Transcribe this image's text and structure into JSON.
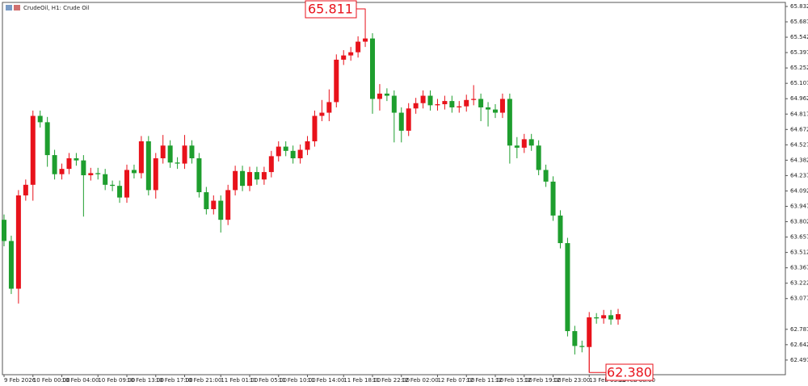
{
  "chart_data": {
    "type": "candlestick",
    "title": "CrudeOil, H1: Crude Oil",
    "categories": [
      "9 Feb 2026",
      null,
      null,
      null,
      "10 Feb 00:00",
      null,
      null,
      null,
      "10 Feb 04:00",
      null,
      null,
      null,
      null,
      "10 Feb 09:00",
      null,
      null,
      null,
      "10 Feb 13:00",
      null,
      null,
      null,
      "10 Feb 17:00",
      null,
      null,
      null,
      "10 Feb 21:00",
      null,
      null,
      null,
      null,
      "11 Feb 01:00",
      null,
      null,
      null,
      "11 Feb 05:00",
      null,
      null,
      null,
      "11 Feb 10:00",
      null,
      null,
      null,
      "11 Feb 14:00",
      null,
      null,
      null,
      null,
      "11 Feb 18:00",
      null,
      null,
      null,
      "11 Feb 22:00",
      null,
      null,
      null,
      "12 Feb 02:00",
      null,
      null,
      null,
      null,
      "12 Feb 07:00",
      null,
      null,
      null,
      "12 Feb 11:00",
      null,
      null,
      null,
      "12 Feb 15:00",
      null,
      null,
      null,
      "12 Feb 19:00",
      null,
      null,
      null,
      "12 Feb 23:00",
      null,
      null,
      null,
      null,
      "13 Feb 03:00",
      null,
      null,
      null,
      "13 Feb 08:00"
    ],
    "open": [
      63.82,
      63.62,
      63.17,
      64.05,
      64.15,
      64.8,
      64.74,
      64.43,
      64.25,
      64.3,
      64.4,
      64.38,
      64.24,
      64.26,
      64.25,
      64.15,
      64.14,
      64.03,
      64.29,
      64.26,
      64.56,
      64.1,
      64.4,
      64.52,
      64.36,
      64.35,
      64.52,
      64.4,
      64.08,
      63.92,
      64.0,
      63.82,
      64.1,
      64.28,
      64.14,
      64.27,
      64.2,
      64.27,
      64.42,
      64.51,
      64.47,
      64.4,
      64.48,
      64.56,
      64.8,
      64.83,
      64.93,
      65.33,
      65.37,
      65.4,
      65.5,
      65.53,
      64.96,
      65.01,
      64.99,
      64.83,
      64.66,
      64.87,
      64.92,
      64.99,
      64.9,
      64.91,
      64.94,
      64.88,
      64.89,
      64.95,
      64.96,
      64.88,
      64.86,
      64.83,
      64.96,
      64.52,
      64.5,
      64.58,
      64.52,
      64.29,
      64.18,
      63.86,
      63.6,
      62.77,
      62.63,
      62.62,
      62.9,
      62.89,
      62.92,
      62.88
    ],
    "high": [
      63.87,
      63.67,
      64.1,
      64.2,
      64.85,
      64.85,
      64.79,
      64.48,
      64.35,
      64.45,
      64.45,
      64.43,
      64.31,
      64.31,
      64.3,
      64.19,
      64.19,
      64.34,
      64.34,
      64.61,
      64.61,
      64.45,
      64.62,
      64.57,
      64.41,
      64.62,
      64.57,
      64.45,
      64.13,
      64.05,
      64.05,
      64.15,
      64.33,
      64.33,
      64.32,
      64.32,
      64.32,
      64.47,
      64.56,
      64.56,
      64.52,
      64.53,
      64.61,
      64.85,
      64.95,
      65.05,
      65.38,
      65.42,
      65.45,
      65.55,
      65.811,
      65.58,
      65.1,
      65.06,
      65.04,
      64.88,
      64.92,
      64.97,
      65.04,
      65.04,
      64.96,
      64.99,
      64.99,
      64.94,
      65.0,
      65.09,
      65.01,
      64.93,
      64.91,
      65.01,
      65.01,
      64.6,
      64.63,
      64.63,
      64.57,
      64.34,
      64.23,
      63.91,
      63.65,
      62.82,
      62.68,
      62.95,
      62.94,
      62.97,
      62.97,
      62.98
    ],
    "low": [
      63.57,
      63.12,
      63.03,
      64.0,
      64.0,
      64.69,
      64.32,
      64.2,
      64.2,
      64.25,
      64.33,
      63.85,
      64.19,
      64.2,
      64.1,
      64.09,
      63.98,
      63.98,
      64.21,
      64.21,
      64.05,
      64.02,
      64.35,
      64.31,
      64.3,
      64.3,
      64.35,
      64.03,
      63.87,
      63.87,
      63.7,
      63.77,
      64.05,
      64.09,
      64.09,
      64.15,
      64.15,
      64.22,
      64.37,
      64.42,
      64.35,
      64.35,
      64.43,
      64.51,
      64.75,
      64.75,
      64.88,
      65.28,
      65.32,
      65.35,
      65.45,
      64.82,
      64.85,
      64.94,
      64.55,
      64.55,
      64.61,
      64.82,
      64.87,
      64.85,
      64.85,
      64.86,
      64.83,
      64.83,
      64.84,
      64.9,
      64.75,
      64.7,
      64.78,
      64.78,
      64.35,
      64.4,
      64.45,
      64.47,
      64.24,
      64.13,
      63.81,
      63.55,
      62.72,
      62.55,
      62.57,
      62.38,
      62.84,
      62.84,
      62.83,
      62.83
    ],
    "close": [
      63.62,
      63.17,
      64.05,
      64.15,
      64.8,
      64.74,
      64.43,
      64.25,
      64.3,
      64.4,
      64.38,
      64.24,
      64.26,
      64.25,
      64.15,
      64.14,
      64.03,
      64.29,
      64.26,
      64.56,
      64.1,
      64.4,
      64.52,
      64.36,
      64.35,
      64.52,
      64.4,
      64.08,
      63.92,
      64.0,
      63.82,
      64.1,
      64.28,
      64.14,
      64.27,
      64.2,
      64.27,
      64.42,
      64.51,
      64.47,
      64.4,
      64.48,
      64.56,
      64.8,
      64.83,
      64.93,
      65.33,
      65.37,
      65.4,
      65.5,
      65.53,
      64.96,
      65.01,
      64.99,
      64.83,
      64.66,
      64.87,
      64.92,
      64.99,
      64.9,
      64.91,
      64.94,
      64.88,
      64.89,
      64.95,
      64.96,
      64.88,
      64.86,
      64.83,
      64.96,
      64.52,
      64.5,
      64.58,
      64.52,
      64.29,
      64.18,
      63.86,
      63.6,
      62.77,
      62.63,
      62.62,
      62.9,
      62.89,
      62.92,
      62.88,
      62.93
    ],
    "up_color": "#e8121b",
    "down_color": "#1e9e2e",
    "ylim": [
      62.359,
      65.87
    ],
    "yticks": [
      65.832,
      65.687,
      65.542,
      65.397,
      65.252,
      65.107,
      64.962,
      64.817,
      64.672,
      64.527,
      64.382,
      64.237,
      64.092,
      63.947,
      63.802,
      63.657,
      63.512,
      63.367,
      63.222,
      63.077,
      62.787,
      62.642,
      62.497
    ],
    "annotations": [
      {
        "label": "65.811",
        "value": 65.811
      },
      {
        "label": "62.380",
        "value": 62.38
      }
    ]
  }
}
